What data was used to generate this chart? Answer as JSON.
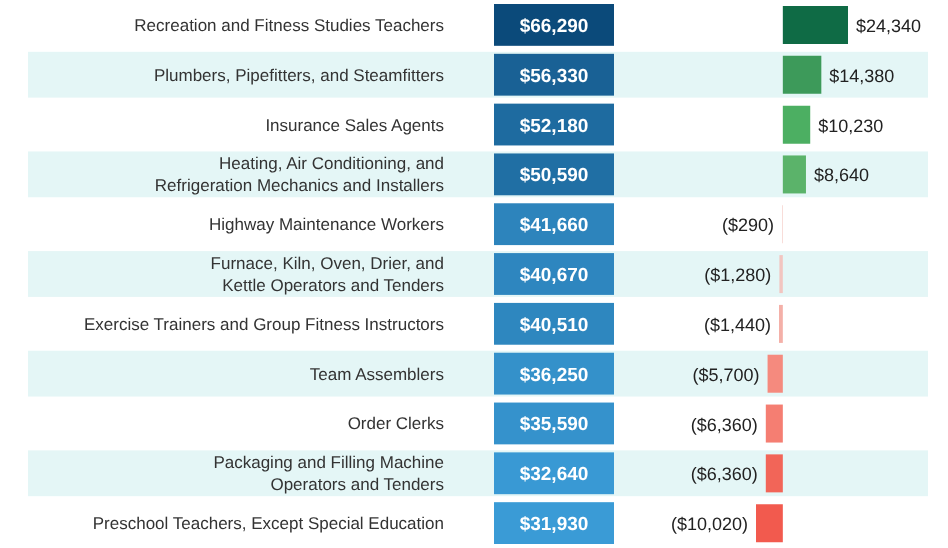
{
  "chart_data": [
    {
      "type": "heatmap",
      "categories": [
        null
      ],
      "y_categories": [
        "Recreation and Fitness Studies Teachers",
        "Plumbers, Pipefitters, and Steamfitters",
        "Insurance Sales Agents",
        "Heating, Air Conditioning, and Refrigeration Mechanics and Installers",
        "Highway Maintenance Workers",
        "Furnace, Kiln, Oven, Drier, and Kettle Operators and Tenders",
        "Exercise Trainers and Group Fitness Instructors",
        "Team Assemblers",
        "Order Clerks",
        "Packaging and Filling Machine Operators and Tenders",
        "Preschool Teachers, Except Special Education"
      ],
      "cells": [
        [
          66290
        ],
        [
          56330
        ],
        [
          52180
        ],
        [
          50590
        ],
        [
          41660
        ],
        [
          40670
        ],
        [
          40510
        ],
        [
          36250
        ],
        [
          35590
        ],
        [
          32640
        ],
        [
          31930
        ]
      ],
      "cell_labels": [
        [
          "$66,290"
        ],
        [
          "$56,330"
        ],
        [
          "$52,180"
        ],
        [
          "$50,590"
        ],
        [
          "$41,660"
        ],
        [
          "$40,670"
        ],
        [
          "$40,510"
        ],
        [
          "$36,250"
        ],
        [
          "$35,590"
        ],
        [
          "$32,640"
        ],
        [
          "$31,930"
        ]
      ]
    },
    {
      "type": "bar",
      "orientation": "horizontal",
      "tick_labels": false,
      "categories": [
        null,
        null,
        null,
        null,
        null,
        null,
        null,
        null,
        null,
        null,
        null
      ],
      "values": [
        24340,
        14380,
        10230,
        8640,
        -290,
        -1280,
        -1440,
        -5700,
        -6360,
        -6360,
        -10020
      ],
      "colors": [
        "#0f6b45",
        "#3d9a5a",
        "#4caf62",
        "#5bb36a",
        "#f6d3cf",
        "#f2c5c0",
        "#f4b0a8",
        "#f58a7e",
        "#f57e72",
        "#f26558",
        "#f25a4e"
      ],
      "value_labels": [
        "$24,340",
        "$14,380",
        "$10,230",
        "$8,640",
        "($290)",
        "($1,280)",
        "($1,440)",
        "($5,700)",
        "($6,360)",
        "($6,360)",
        "($10,020)"
      ]
    }
  ]
}
